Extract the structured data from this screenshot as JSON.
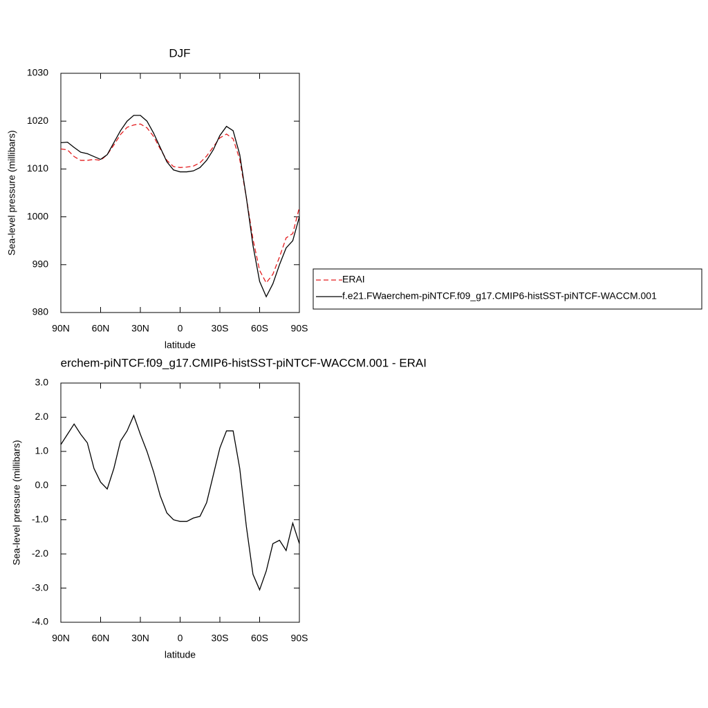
{
  "chart_data": [
    {
      "type": "line",
      "title": "DJF",
      "xlabel": "latitude",
      "ylabel": "Sea-level pressure (millibars)",
      "x": [
        90,
        85,
        80,
        75,
        70,
        65,
        60,
        55,
        50,
        45,
        40,
        35,
        30,
        25,
        20,
        15,
        10,
        5,
        0,
        -5,
        -10,
        -15,
        -20,
        -25,
        -30,
        -35,
        -40,
        -45,
        -50,
        -55,
        -60,
        -65,
        -70,
        -75,
        -80,
        -85,
        -90
      ],
      "xlim": [
        90,
        -90
      ],
      "xticks": [
        {
          "value": 90,
          "label": "90N"
        },
        {
          "value": 60,
          "label": "60N"
        },
        {
          "value": 30,
          "label": "30N"
        },
        0,
        {
          "value": -30,
          "label": "30S"
        },
        {
          "value": -60,
          "label": "60S"
        },
        {
          "value": -90,
          "label": "90S"
        }
      ],
      "ylim": [
        980,
        1030
      ],
      "yticks": [
        980,
        990,
        1000,
        1010,
        1020,
        1030
      ],
      "legend": "outside-right",
      "series": [
        {
          "name": "ERAI",
          "color": "#e31a1c",
          "dashed": true,
          "values": [
            1014.2,
            1014,
            1012.6,
            1011.8,
            1011.8,
            1012,
            1011.8,
            1013,
            1015,
            1017.2,
            1018.7,
            1019.2,
            1019.4,
            1018.6,
            1016.8,
            1014.2,
            1011.8,
            1010.5,
            1010.3,
            1010.4,
            1010.6,
            1011.3,
            1012.7,
            1014.6,
            1016.5,
            1017.3,
            1016.3,
            1012,
            1004,
            995.3,
            988.8,
            986.2,
            988,
            991.6,
            995.6,
            996.5,
            1002
          ]
        },
        {
          "name": "f.e21.FWaerchem-piNTCF.f09_g17.CMIP6-histSST-piNTCF-WACCM.001",
          "color": "#000000",
          "dashed": false,
          "values": [
            1015.5,
            1015.6,
            1014.5,
            1013.5,
            1013.2,
            1012.6,
            1012,
            1013,
            1015.5,
            1018,
            1020,
            1021.2,
            1021.2,
            1020,
            1017.5,
            1014.5,
            1011.5,
            1009.8,
            1009.4,
            1009.4,
            1009.6,
            1010.3,
            1011.8,
            1014,
            1017,
            1018.9,
            1018,
            1013,
            1004,
            994,
            986.5,
            983.3,
            986,
            990,
            993.5,
            995,
            1000
          ]
        }
      ]
    },
    {
      "type": "line",
      "title": "erchem-piNTCF.f09_g17.CMIP6-histSST-piNTCF-WACCM.001 - ERAI",
      "xlabel": "latitude",
      "ylabel": "Sea-level pressure (millibars)",
      "x": [
        90,
        85,
        80,
        75,
        70,
        65,
        60,
        55,
        50,
        45,
        40,
        35,
        30,
        25,
        20,
        15,
        10,
        5,
        0,
        -5,
        -10,
        -15,
        -20,
        -25,
        -30,
        -35,
        -40,
        -45,
        -50,
        -55,
        -60,
        -65,
        -70,
        -75,
        -80,
        -85,
        -90
      ],
      "xlim": [
        90,
        -90
      ],
      "xticks": [
        {
          "value": 90,
          "label": "90N"
        },
        {
          "value": 60,
          "label": "60N"
        },
        {
          "value": 30,
          "label": "30N"
        },
        0,
        {
          "value": -30,
          "label": "30S"
        },
        {
          "value": -60,
          "label": "60S"
        },
        {
          "value": -90,
          "label": "90S"
        }
      ],
      "ylim": [
        -4,
        3
      ],
      "yticks": [
        {
          "value": -4,
          "label": "-4.0"
        },
        {
          "value": -3,
          "label": "-3.0"
        },
        {
          "value": -2,
          "label": "-2.0"
        },
        {
          "value": -1,
          "label": "-1.0"
        },
        {
          "value": 0,
          "label": "0.0"
        },
        {
          "value": 1,
          "label": "1.0"
        },
        {
          "value": 2,
          "label": "2.0"
        },
        {
          "value": 3,
          "label": "3.0"
        }
      ],
      "series": [
        {
          "color": "#000000",
          "dashed": false,
          "values": [
            1.2,
            1.5,
            1.8,
            1.5,
            1.25,
            0.5,
            0.1,
            -0.1,
            0.5,
            1.3,
            1.6,
            2.05,
            1.5,
            1.0,
            0.4,
            -0.3,
            -0.8,
            -1.0,
            -1.05,
            -1.05,
            -0.95,
            -0.9,
            -0.5,
            0.3,
            1.1,
            1.6,
            1.6,
            0.5,
            -1.2,
            -2.6,
            -3.05,
            -2.5,
            -1.7,
            -1.6,
            -1.9,
            -1.1,
            -1.7
          ]
        }
      ]
    }
  ]
}
